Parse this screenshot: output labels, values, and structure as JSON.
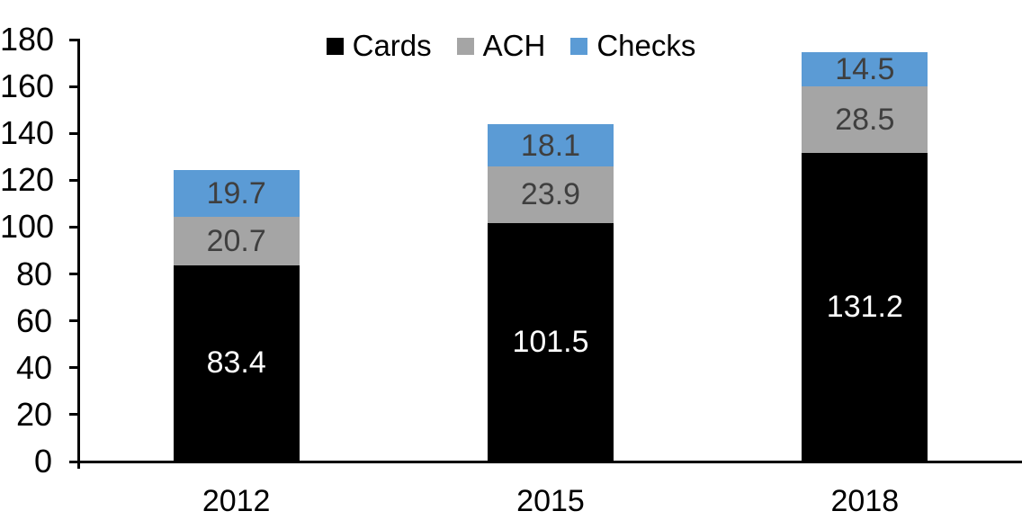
{
  "chart_data": {
    "type": "bar",
    "stacked": true,
    "title": "",
    "categories": [
      "2012",
      "2015",
      "2018"
    ],
    "series": [
      {
        "name": "Cards",
        "color": "#000000",
        "label_color": "#ffffff",
        "values": [
          83.4,
          101.5,
          131.2
        ]
      },
      {
        "name": "ACH",
        "color": "#a5a5a5",
        "label_color": "#3f3f3f",
        "values": [
          20.7,
          23.9,
          28.5
        ]
      },
      {
        "name": "Checks",
        "color": "#5b9bd5",
        "label_color": "#3f3f3f",
        "values": [
          19.7,
          18.1,
          14.5
        ]
      }
    ],
    "value_labels": "inside-center",
    "value_label_decimals": 1,
    "ylim": [
      0,
      180
    ],
    "yticks": [
      0,
      20,
      40,
      60,
      80,
      100,
      120,
      140,
      160,
      180
    ],
    "grid": false,
    "legend_position": "top-center",
    "axis_color": "#000000",
    "background": "#ffffff"
  }
}
